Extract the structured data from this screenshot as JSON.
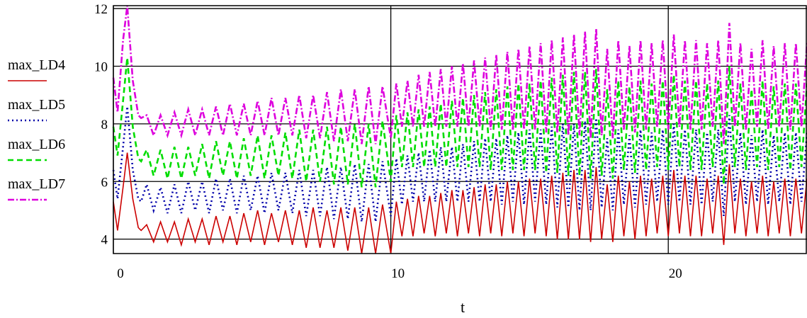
{
  "chart_data": {
    "type": "line",
    "xlabel": "t",
    "ylabel": "",
    "xlim": [
      0,
      25
    ],
    "ylim": [
      3.5,
      12.1
    ],
    "x_ticks": [
      0,
      10,
      20
    ],
    "y_ticks": [
      4,
      6,
      8,
      10,
      12
    ],
    "grid": true,
    "legend_placement": "left",
    "series": [
      {
        "name": "max_LD4",
        "color": "#cc0000",
        "style": "solid",
        "x": [
          0.0,
          0.15,
          0.35,
          0.5,
          0.7,
          0.9,
          1.0,
          1.2,
          1.45,
          1.7,
          1.95,
          2.2,
          2.45,
          2.7,
          2.95,
          3.2,
          3.45,
          3.7,
          3.95,
          4.2,
          4.45,
          4.7,
          4.95,
          5.2,
          5.45,
          5.7,
          5.95,
          6.2,
          6.45,
          6.7,
          6.95,
          7.2,
          7.45,
          7.7,
          7.95,
          8.2,
          8.45,
          8.7,
          8.95,
          9.2,
          9.45,
          9.7,
          10.0,
          10.2,
          10.4,
          10.6,
          10.8,
          11.0,
          11.2,
          11.4,
          11.6,
          11.8,
          12.0,
          12.2,
          12.4,
          12.6,
          12.8,
          13.0,
          13.2,
          13.4,
          13.6,
          13.8,
          14.0,
          14.2,
          14.4,
          14.6,
          14.8,
          15.0,
          15.2,
          15.4,
          15.6,
          15.8,
          16.0,
          16.2,
          16.4,
          16.6,
          16.8,
          17.0,
          17.2,
          17.4,
          17.6,
          17.8,
          18.0,
          18.2,
          18.4,
          18.6,
          18.8,
          19.0,
          19.2,
          19.4,
          19.6,
          19.8,
          20.0,
          20.2,
          20.4,
          20.6,
          20.8,
          21.0,
          21.2,
          21.4,
          21.6,
          21.8,
          22.0,
          22.2,
          22.4,
          22.6,
          22.8,
          23.0,
          23.2,
          23.4,
          23.6,
          23.8,
          24.0,
          24.2,
          24.4,
          24.6,
          24.8,
          25.0
        ],
        "y": [
          5.3,
          4.3,
          5.8,
          7.0,
          5.4,
          4.4,
          4.3,
          4.5,
          3.9,
          4.6,
          3.9,
          4.6,
          3.8,
          4.7,
          3.9,
          4.7,
          3.8,
          4.8,
          3.9,
          4.8,
          3.8,
          4.9,
          3.9,
          5.0,
          3.8,
          4.9,
          3.9,
          5.0,
          3.8,
          5.0,
          3.7,
          5.1,
          3.7,
          5.0,
          3.7,
          5.1,
          3.6,
          5.1,
          3.5,
          5.1,
          3.5,
          5.2,
          3.5,
          5.3,
          4.1,
          5.4,
          4.1,
          5.5,
          4.2,
          5.5,
          4.1,
          5.6,
          4.2,
          5.7,
          4.1,
          5.7,
          4.2,
          5.8,
          4.1,
          5.9,
          4.2,
          5.9,
          4.1,
          6.0,
          4.2,
          6.0,
          4.1,
          6.1,
          4.2,
          6.1,
          4.1,
          6.2,
          4.0,
          6.3,
          4.0,
          6.4,
          4.0,
          6.4,
          3.9,
          6.5,
          4.0,
          5.9,
          3.9,
          6.2,
          4.1,
          6.0,
          4.0,
          6.2,
          4.1,
          6.1,
          4.2,
          6.2,
          4.1,
          6.4,
          4.2,
          6.2,
          4.1,
          6.2,
          4.1,
          6.1,
          4.2,
          6.2,
          3.8,
          6.6,
          4.2,
          6.1,
          4.1,
          6.0,
          4.2,
          6.2,
          4.1,
          6.0,
          4.2,
          6.1,
          4.1,
          6.1,
          4.2,
          6.1
        ]
      },
      {
        "name": "max_LD5",
        "color": "#0000aa",
        "style": "dotted",
        "x": [
          0.0,
          0.15,
          0.35,
          0.5,
          0.7,
          0.9,
          1.0,
          1.2,
          1.45,
          1.7,
          1.95,
          2.2,
          2.45,
          2.7,
          2.95,
          3.2,
          3.45,
          3.7,
          3.95,
          4.2,
          4.45,
          4.7,
          4.95,
          5.2,
          5.45,
          5.7,
          5.95,
          6.2,
          6.45,
          6.7,
          6.95,
          7.2,
          7.45,
          7.7,
          7.95,
          8.2,
          8.45,
          8.7,
          8.95,
          9.2,
          9.45,
          9.7,
          10.0,
          10.2,
          10.4,
          10.6,
          10.8,
          11.0,
          11.2,
          11.4,
          11.6,
          11.8,
          12.0,
          12.2,
          12.4,
          12.6,
          12.8,
          13.0,
          13.2,
          13.4,
          13.6,
          13.8,
          14.0,
          14.2,
          14.4,
          14.6,
          14.8,
          15.0,
          15.2,
          15.4,
          15.6,
          15.8,
          16.0,
          16.2,
          16.4,
          16.6,
          16.8,
          17.0,
          17.2,
          17.4,
          17.6,
          17.8,
          18.0,
          18.2,
          18.4,
          18.6,
          18.8,
          19.0,
          19.2,
          19.4,
          19.6,
          19.8,
          20.0,
          20.2,
          20.4,
          20.6,
          20.8,
          21.0,
          21.2,
          21.4,
          21.6,
          21.8,
          22.0,
          22.2,
          22.4,
          22.6,
          22.8,
          23.0,
          23.2,
          23.4,
          23.6,
          23.8,
          24.0,
          24.2,
          24.4,
          24.6,
          24.8,
          25.0
        ],
        "y": [
          6.4,
          5.4,
          7.2,
          8.6,
          6.4,
          5.4,
          5.3,
          5.9,
          5.0,
          5.8,
          4.9,
          5.9,
          4.9,
          6.0,
          5.0,
          6.0,
          4.9,
          6.1,
          5.0,
          6.1,
          4.9,
          6.2,
          5.0,
          6.2,
          4.9,
          6.3,
          5.0,
          6.3,
          4.9,
          6.4,
          4.8,
          6.4,
          4.8,
          6.5,
          4.7,
          6.5,
          4.7,
          6.6,
          4.6,
          6.6,
          4.6,
          6.7,
          4.8,
          6.8,
          5.2,
          6.9,
          5.3,
          7.0,
          5.3,
          7.1,
          5.3,
          7.2,
          5.3,
          7.2,
          5.3,
          7.3,
          5.3,
          7.4,
          5.3,
          7.5,
          5.3,
          7.5,
          5.2,
          7.6,
          5.3,
          7.7,
          5.2,
          7.8,
          5.3,
          7.8,
          5.2,
          7.9,
          5.1,
          8.0,
          5.1,
          8.0,
          5.0,
          8.1,
          5.0,
          8.2,
          5.1,
          7.5,
          5.0,
          7.8,
          5.2,
          7.6,
          5.1,
          7.8,
          5.2,
          7.7,
          5.3,
          7.8,
          5.2,
          8.0,
          5.3,
          7.8,
          5.2,
          7.8,
          5.2,
          7.7,
          5.3,
          7.8,
          4.8,
          8.3,
          5.3,
          7.7,
          5.2,
          7.6,
          5.3,
          7.8,
          5.2,
          7.6,
          5.3,
          7.7,
          5.2,
          7.7,
          5.3,
          7.7
        ]
      },
      {
        "name": "max_LD6",
        "color": "#00dd00",
        "style": "dashed",
        "x": [
          0.0,
          0.15,
          0.35,
          0.5,
          0.7,
          0.9,
          1.0,
          1.2,
          1.45,
          1.7,
          1.95,
          2.2,
          2.45,
          2.7,
          2.95,
          3.2,
          3.45,
          3.7,
          3.95,
          4.2,
          4.45,
          4.7,
          4.95,
          5.2,
          5.45,
          5.7,
          5.95,
          6.2,
          6.45,
          6.7,
          6.95,
          7.2,
          7.45,
          7.7,
          7.95,
          8.2,
          8.45,
          8.7,
          8.95,
          9.2,
          9.45,
          9.7,
          10.0,
          10.2,
          10.4,
          10.6,
          10.8,
          11.0,
          11.2,
          11.4,
          11.6,
          11.8,
          12.0,
          12.2,
          12.4,
          12.6,
          12.8,
          13.0,
          13.2,
          13.4,
          13.6,
          13.8,
          14.0,
          14.2,
          14.4,
          14.6,
          14.8,
          15.0,
          15.2,
          15.4,
          15.6,
          15.8,
          16.0,
          16.2,
          16.4,
          16.6,
          16.8,
          17.0,
          17.2,
          17.4,
          17.6,
          17.8,
          18.0,
          18.2,
          18.4,
          18.6,
          18.8,
          19.0,
          19.2,
          19.4,
          19.6,
          19.8,
          20.0,
          20.2,
          20.4,
          20.6,
          20.8,
          21.0,
          21.2,
          21.4,
          21.6,
          21.8,
          22.0,
          22.2,
          22.4,
          22.6,
          22.8,
          23.0,
          23.2,
          23.4,
          23.6,
          23.8,
          24.0,
          24.2,
          24.4,
          24.6,
          24.8,
          25.0
        ],
        "y": [
          7.9,
          6.9,
          8.8,
          10.3,
          7.9,
          6.8,
          6.7,
          7.1,
          6.2,
          7.1,
          6.1,
          7.2,
          6.1,
          7.2,
          6.2,
          7.3,
          6.1,
          7.4,
          6.2,
          7.4,
          6.1,
          7.5,
          6.2,
          7.6,
          6.1,
          7.6,
          6.2,
          7.7,
          6.1,
          7.8,
          6.0,
          7.8,
          6.0,
          7.9,
          5.9,
          7.9,
          5.9,
          8.0,
          5.8,
          8.0,
          5.8,
          8.1,
          6.0,
          8.3,
          6.5,
          8.4,
          6.5,
          8.5,
          6.5,
          8.6,
          6.5,
          8.7,
          6.5,
          8.8,
          6.5,
          8.9,
          6.5,
          9.0,
          6.5,
          9.1,
          6.4,
          9.2,
          6.4,
          9.3,
          6.4,
          9.4,
          6.4,
          9.4,
          6.4,
          9.5,
          6.3,
          9.6,
          6.3,
          9.7,
          6.2,
          9.8,
          6.2,
          9.8,
          6.1,
          9.9,
          6.2,
          9.2,
          6.1,
          9.5,
          6.4,
          9.3,
          6.3,
          9.5,
          6.4,
          9.4,
          6.5,
          9.5,
          6.4,
          9.7,
          6.5,
          9.5,
          6.4,
          9.5,
          6.4,
          9.4,
          6.5,
          9.5,
          5.9,
          10.0,
          6.5,
          9.4,
          6.4,
          9.2,
          6.5,
          9.5,
          6.4,
          9.3,
          6.5,
          9.4,
          6.4,
          9.4,
          6.5,
          9.4
        ]
      },
      {
        "name": "max_LD7",
        "color": "#dd00dd",
        "style": "dash-dot",
        "x": [
          0.0,
          0.15,
          0.35,
          0.5,
          0.7,
          0.9,
          1.0,
          1.2,
          1.45,
          1.7,
          1.95,
          2.2,
          2.45,
          2.7,
          2.95,
          3.2,
          3.45,
          3.7,
          3.95,
          4.2,
          4.45,
          4.7,
          4.95,
          5.2,
          5.45,
          5.7,
          5.95,
          6.2,
          6.45,
          6.7,
          6.95,
          7.2,
          7.45,
          7.7,
          7.95,
          8.2,
          8.45,
          8.7,
          8.95,
          9.2,
          9.45,
          9.7,
          10.0,
          10.2,
          10.4,
          10.6,
          10.8,
          11.0,
          11.2,
          11.4,
          11.6,
          11.8,
          12.0,
          12.2,
          12.4,
          12.6,
          12.8,
          13.0,
          13.2,
          13.4,
          13.6,
          13.8,
          14.0,
          14.2,
          14.4,
          14.6,
          14.8,
          15.0,
          15.2,
          15.4,
          15.6,
          15.8,
          16.0,
          16.2,
          16.4,
          16.6,
          16.8,
          17.0,
          17.2,
          17.4,
          17.6,
          17.8,
          18.0,
          18.2,
          18.4,
          18.6,
          18.8,
          19.0,
          19.2,
          19.4,
          19.6,
          19.8,
          20.0,
          20.2,
          20.4,
          20.6,
          20.8,
          21.0,
          21.2,
          21.4,
          21.6,
          21.8,
          22.0,
          22.2,
          22.4,
          22.6,
          22.8,
          23.0,
          23.2,
          23.4,
          23.6,
          23.8,
          24.0,
          24.2,
          24.4,
          24.6,
          24.8,
          25.0
        ],
        "y": [
          9.6,
          8.4,
          10.9,
          12.1,
          9.5,
          8.3,
          8.2,
          8.3,
          7.6,
          8.3,
          7.6,
          8.4,
          7.6,
          8.5,
          7.6,
          8.5,
          7.6,
          8.6,
          7.6,
          8.7,
          7.6,
          8.7,
          7.6,
          8.8,
          7.6,
          8.9,
          7.6,
          8.9,
          7.6,
          9.0,
          7.5,
          9.0,
          7.5,
          9.1,
          7.4,
          9.2,
          7.4,
          9.2,
          7.3,
          9.3,
          7.3,
          9.3,
          7.5,
          9.4,
          7.9,
          9.5,
          7.9,
          9.7,
          7.9,
          9.8,
          7.9,
          9.9,
          7.9,
          10.0,
          7.9,
          10.1,
          7.9,
          10.2,
          7.9,
          10.3,
          7.8,
          10.4,
          7.8,
          10.5,
          7.8,
          10.6,
          7.8,
          10.7,
          7.8,
          10.8,
          7.7,
          10.9,
          7.7,
          11.0,
          7.6,
          11.1,
          7.6,
          11.2,
          7.5,
          11.3,
          7.6,
          10.6,
          7.5,
          10.9,
          7.8,
          10.7,
          7.7,
          10.9,
          7.8,
          10.8,
          7.9,
          10.9,
          7.8,
          11.1,
          7.9,
          10.9,
          7.8,
          10.9,
          7.8,
          10.8,
          7.9,
          10.9,
          7.3,
          11.5,
          7.9,
          10.8,
          7.8,
          10.6,
          7.9,
          10.9,
          7.8,
          10.7,
          7.9,
          10.8,
          7.8,
          10.8,
          7.9,
          10.8
        ]
      }
    ]
  }
}
